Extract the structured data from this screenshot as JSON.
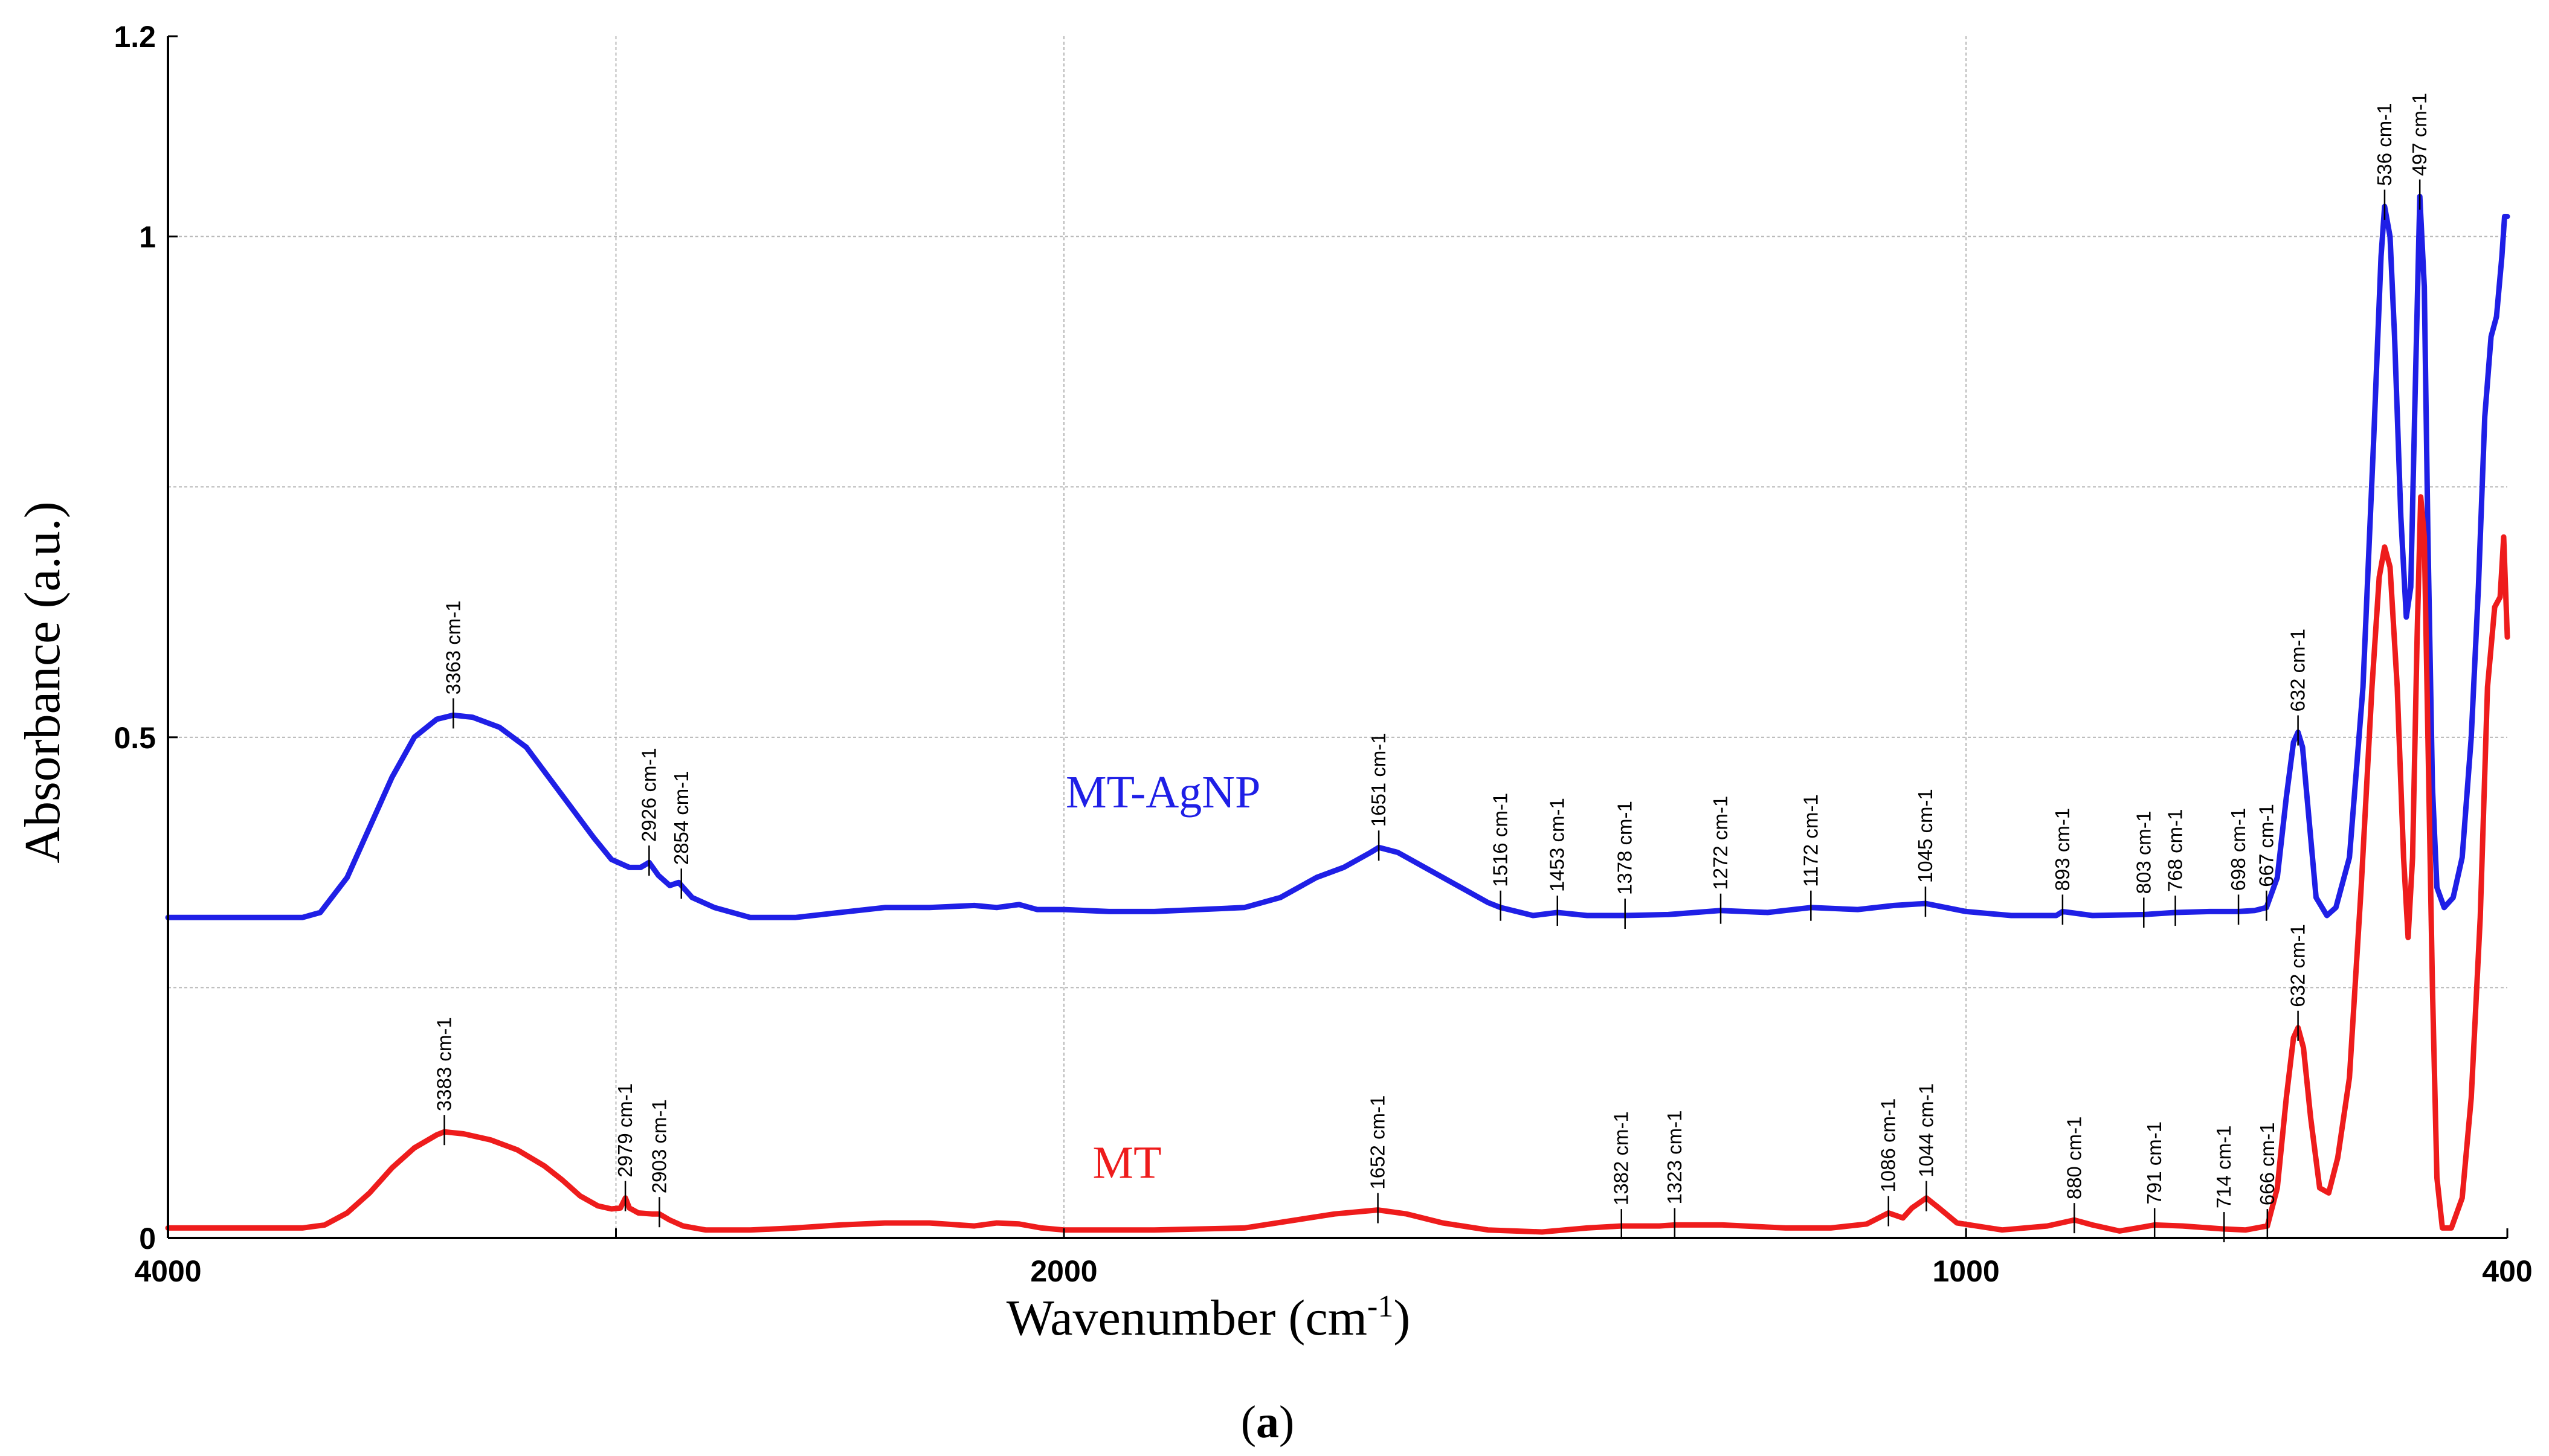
{
  "chart_data": {
    "type": "line",
    "title": "",
    "xlabel": "Wavenumber (cm",
    "xlabel_sup": "-1",
    "xlabel_close": ")",
    "ylabel": "Absorbance (a.u.)",
    "caption_open": "(",
    "caption_letter": "a",
    "caption_close": ")",
    "xlim": [
      4000,
      400
    ],
    "ylim": [
      0,
      1.2
    ],
    "x_tick_labels": [
      {
        "value": 4000,
        "label": "4000"
      },
      {
        "value": 2000,
        "label": "2000"
      },
      {
        "value": 1000,
        "label": "1000"
      },
      {
        "value": 400,
        "label": "400"
      }
    ],
    "y_tick_labels": [
      {
        "value": 0,
        "label": "0"
      },
      {
        "value": 0.5,
        "label": "0.5"
      },
      {
        "value": 1,
        "label": "1"
      },
      {
        "value": 1.2,
        "label": "1.2"
      }
    ],
    "grid_x": [
      3000,
      2000,
      1000
    ],
    "grid_y": [
      0.25,
      0.5,
      0.75,
      1.0
    ],
    "grid": true,
    "series": [
      {
        "name": "MT-AgNP",
        "color": "#1f1fe6",
        "label_at": {
          "x": 1890,
          "y": 0.43
        },
        "points": [
          [
            4000,
            0.32
          ],
          [
            3700,
            0.32
          ],
          [
            3660,
            0.325
          ],
          [
            3600,
            0.36
          ],
          [
            3550,
            0.41
          ],
          [
            3500,
            0.46
          ],
          [
            3450,
            0.5
          ],
          [
            3400,
            0.518
          ],
          [
            3363,
            0.522
          ],
          [
            3320,
            0.52
          ],
          [
            3260,
            0.51
          ],
          [
            3200,
            0.49
          ],
          [
            3150,
            0.46
          ],
          [
            3100,
            0.43
          ],
          [
            3050,
            0.4
          ],
          [
            3010,
            0.378
          ],
          [
            2970,
            0.37
          ],
          [
            2945,
            0.37
          ],
          [
            2926,
            0.375
          ],
          [
            2905,
            0.362
          ],
          [
            2880,
            0.352
          ],
          [
            2860,
            0.355
          ],
          [
            2854,
            0.352
          ],
          [
            2830,
            0.34
          ],
          [
            2780,
            0.33
          ],
          [
            2700,
            0.32
          ],
          [
            2600,
            0.32
          ],
          [
            2500,
            0.325
          ],
          [
            2400,
            0.33
          ],
          [
            2300,
            0.33
          ],
          [
            2200,
            0.332
          ],
          [
            2150,
            0.33
          ],
          [
            2100,
            0.333
          ],
          [
            2060,
            0.328
          ],
          [
            2000,
            0.328
          ],
          [
            1950,
            0.326
          ],
          [
            1900,
            0.326
          ],
          [
            1850,
            0.328
          ],
          [
            1800,
            0.33
          ],
          [
            1760,
            0.34
          ],
          [
            1720,
            0.36
          ],
          [
            1690,
            0.37
          ],
          [
            1660,
            0.385
          ],
          [
            1651,
            0.39
          ],
          [
            1630,
            0.385
          ],
          [
            1600,
            0.37
          ],
          [
            1560,
            0.35
          ],
          [
            1530,
            0.335
          ],
          [
            1516,
            0.33
          ],
          [
            1480,
            0.322
          ],
          [
            1453,
            0.325
          ],
          [
            1420,
            0.322
          ],
          [
            1378,
            0.322
          ],
          [
            1330,
            0.323
          ],
          [
            1272,
            0.327
          ],
          [
            1220,
            0.325
          ],
          [
            1172,
            0.33
          ],
          [
            1120,
            0.328
          ],
          [
            1080,
            0.332
          ],
          [
            1045,
            0.334
          ],
          [
            1000,
            0.326
          ],
          [
            950,
            0.322
          ],
          [
            900,
            0.322
          ],
          [
            893,
            0.326
          ],
          [
            860,
            0.322
          ],
          [
            803,
            0.323
          ],
          [
            768,
            0.325
          ],
          [
            730,
            0.326
          ],
          [
            698,
            0.326
          ],
          [
            680,
            0.327
          ],
          [
            667,
            0.33
          ],
          [
            655,
            0.36
          ],
          [
            645,
            0.44
          ],
          [
            637,
            0.495
          ],
          [
            632,
            0.505
          ],
          [
            627,
            0.49
          ],
          [
            620,
            0.42
          ],
          [
            612,
            0.34
          ],
          [
            600,
            0.322
          ],
          [
            590,
            0.33
          ],
          [
            575,
            0.38
          ],
          [
            560,
            0.55
          ],
          [
            548,
            0.8
          ],
          [
            540,
            0.98
          ],
          [
            536,
            1.03
          ],
          [
            530,
            1.0
          ],
          [
            525,
            0.9
          ],
          [
            518,
            0.72
          ],
          [
            512,
            0.62
          ],
          [
            507,
            0.65
          ],
          [
            502,
            0.85
          ],
          [
            497,
            1.04
          ],
          [
            492,
            0.95
          ],
          [
            488,
            0.7
          ],
          [
            483,
            0.45
          ],
          [
            478,
            0.35
          ],
          [
            470,
            0.33
          ],
          [
            460,
            0.34
          ],
          [
            450,
            0.38
          ],
          [
            440,
            0.5
          ],
          [
            432,
            0.65
          ],
          [
            425,
            0.82
          ],
          [
            418,
            0.9
          ],
          [
            412,
            0.92
          ],
          [
            406,
            0.98
          ],
          [
            403,
            1.02
          ],
          [
            400,
            1.02
          ]
        ]
      },
      {
        "name": "MT",
        "color": "#ee1c1c",
        "label_at": {
          "x": 1930,
          "y": 0.06
        },
        "points": [
          [
            4000,
            0.01
          ],
          [
            3700,
            0.01
          ],
          [
            3650,
            0.013
          ],
          [
            3600,
            0.025
          ],
          [
            3550,
            0.045
          ],
          [
            3500,
            0.07
          ],
          [
            3450,
            0.09
          ],
          [
            3400,
            0.103
          ],
          [
            3383,
            0.106
          ],
          [
            3340,
            0.104
          ],
          [
            3280,
            0.098
          ],
          [
            3220,
            0.088
          ],
          [
            3160,
            0.072
          ],
          [
            3120,
            0.058
          ],
          [
            3080,
            0.042
          ],
          [
            3040,
            0.032
          ],
          [
            3010,
            0.029
          ],
          [
            2990,
            0.03
          ],
          [
            2979,
            0.04
          ],
          [
            2970,
            0.03
          ],
          [
            2950,
            0.025
          ],
          [
            2920,
            0.024
          ],
          [
            2903,
            0.024
          ],
          [
            2880,
            0.018
          ],
          [
            2850,
            0.012
          ],
          [
            2800,
            0.008
          ],
          [
            2700,
            0.008
          ],
          [
            2600,
            0.01
          ],
          [
            2500,
            0.013
          ],
          [
            2400,
            0.015
          ],
          [
            2300,
            0.015
          ],
          [
            2200,
            0.012
          ],
          [
            2150,
            0.015
          ],
          [
            2100,
            0.014
          ],
          [
            2050,
            0.01
          ],
          [
            2000,
            0.008
          ],
          [
            1900,
            0.008
          ],
          [
            1800,
            0.01
          ],
          [
            1750,
            0.017
          ],
          [
            1700,
            0.024
          ],
          [
            1652,
            0.028
          ],
          [
            1620,
            0.024
          ],
          [
            1580,
            0.015
          ],
          [
            1530,
            0.008
          ],
          [
            1470,
            0.006
          ],
          [
            1420,
            0.01
          ],
          [
            1382,
            0.012
          ],
          [
            1340,
            0.012
          ],
          [
            1323,
            0.013
          ],
          [
            1270,
            0.013
          ],
          [
            1200,
            0.01
          ],
          [
            1150,
            0.01
          ],
          [
            1110,
            0.014
          ],
          [
            1086,
            0.025
          ],
          [
            1070,
            0.02
          ],
          [
            1060,
            0.03
          ],
          [
            1044,
            0.04
          ],
          [
            1030,
            0.03
          ],
          [
            1010,
            0.015
          ],
          [
            960,
            0.008
          ],
          [
            910,
            0.012
          ],
          [
            880,
            0.018
          ],
          [
            860,
            0.013
          ],
          [
            830,
            0.007
          ],
          [
            810,
            0.01
          ],
          [
            791,
            0.013
          ],
          [
            760,
            0.012
          ],
          [
            714,
            0.009
          ],
          [
            690,
            0.008
          ],
          [
            666,
            0.012
          ],
          [
            655,
            0.05
          ],
          [
            645,
            0.14
          ],
          [
            637,
            0.2
          ],
          [
            632,
            0.21
          ],
          [
            626,
            0.19
          ],
          [
            618,
            0.12
          ],
          [
            608,
            0.05
          ],
          [
            598,
            0.045
          ],
          [
            588,
            0.08
          ],
          [
            575,
            0.16
          ],
          [
            562,
            0.35
          ],
          [
            550,
            0.55
          ],
          [
            542,
            0.66
          ],
          [
            536,
            0.69
          ],
          [
            530,
            0.67
          ],
          [
            522,
            0.55
          ],
          [
            515,
            0.38
          ],
          [
            510,
            0.3
          ],
          [
            505,
            0.38
          ],
          [
            500,
            0.6
          ],
          [
            496,
            0.74
          ],
          [
            492,
            0.7
          ],
          [
            488,
            0.5
          ],
          [
            483,
            0.25
          ],
          [
            478,
            0.06
          ],
          [
            472,
            0.01
          ],
          [
            462,
            0.01
          ],
          [
            450,
            0.04
          ],
          [
            440,
            0.14
          ],
          [
            430,
            0.32
          ],
          [
            422,
            0.55
          ],
          [
            414,
            0.63
          ],
          [
            408,
            0.64
          ],
          [
            404,
            0.7
          ],
          [
            402,
            0.65
          ],
          [
            400,
            0.6
          ]
        ]
      }
    ],
    "annotations": [
      {
        "series": "MT-AgNP",
        "x": 3363,
        "y": 0.522,
        "label": "3363 cm-1"
      },
      {
        "series": "MT-AgNP",
        "x": 2926,
        "y": 0.375,
        "label": "2926 cm-1"
      },
      {
        "series": "MT-AgNP",
        "x": 2854,
        "y": 0.352,
        "label": "2854 cm-1"
      },
      {
        "series": "MT-AgNP",
        "x": 1651,
        "y": 0.39,
        "label": "1651 cm-1"
      },
      {
        "series": "MT-AgNP",
        "x": 1516,
        "y": 0.33,
        "label": "1516 cm-1"
      },
      {
        "series": "MT-AgNP",
        "x": 1453,
        "y": 0.325,
        "label": "1453 cm-1"
      },
      {
        "series": "MT-AgNP",
        "x": 1378,
        "y": 0.322,
        "label": "1378 cm-1"
      },
      {
        "series": "MT-AgNP",
        "x": 1272,
        "y": 0.327,
        "label": "1272 cm-1"
      },
      {
        "series": "MT-AgNP",
        "x": 1172,
        "y": 0.33,
        "label": "1172 cm-1"
      },
      {
        "series": "MT-AgNP",
        "x": 1045,
        "y": 0.334,
        "label": "1045 cm-1"
      },
      {
        "series": "MT-AgNP",
        "x": 893,
        "y": 0.326,
        "label": "893 cm-1"
      },
      {
        "series": "MT-AgNP",
        "x": 803,
        "y": 0.323,
        "label": "803 cm-1"
      },
      {
        "series": "MT-AgNP",
        "x": 768,
        "y": 0.325,
        "label": "768 cm-1"
      },
      {
        "series": "MT-AgNP",
        "x": 698,
        "y": 0.326,
        "label": "698 cm-1"
      },
      {
        "series": "MT-AgNP",
        "x": 667,
        "y": 0.33,
        "label": "667 cm-1"
      },
      {
        "series": "MT-AgNP",
        "x": 632,
        "y": 0.505,
        "label": "632 cm-1"
      },
      {
        "series": "MT-AgNP",
        "x": 536,
        "y": 1.03,
        "label": "536 cm-1"
      },
      {
        "series": "MT-AgNP",
        "x": 497,
        "y": 1.04,
        "label": "497 cm-1"
      },
      {
        "series": "MT",
        "x": 3383,
        "y": 0.106,
        "label": "3383 cm-1"
      },
      {
        "series": "MT",
        "x": 2979,
        "y": 0.04,
        "label": "2979 cm-1"
      },
      {
        "series": "MT",
        "x": 2903,
        "y": 0.024,
        "label": "2903 cm-1"
      },
      {
        "series": "MT",
        "x": 1652,
        "y": 0.028,
        "label": "1652 cm-1"
      },
      {
        "series": "MT",
        "x": 1382,
        "y": 0.012,
        "label": "1382 cm-1"
      },
      {
        "series": "MT",
        "x": 1323,
        "y": 0.013,
        "label": "1323 cm-1"
      },
      {
        "series": "MT",
        "x": 1086,
        "y": 0.025,
        "label": "1086 cm-1"
      },
      {
        "series": "MT",
        "x": 1044,
        "y": 0.04,
        "label": "1044 cm-1"
      },
      {
        "series": "MT",
        "x": 880,
        "y": 0.018,
        "label": "880 cm-1"
      },
      {
        "series": "MT",
        "x": 791,
        "y": 0.013,
        "label": "791 cm-1"
      },
      {
        "series": "MT",
        "x": 714,
        "y": 0.009,
        "label": "714 cm-1"
      },
      {
        "series": "MT",
        "x": 666,
        "y": 0.012,
        "label": "666 cm-1"
      },
      {
        "series": "MT",
        "x": 632,
        "y": 0.21,
        "label": "632 cm-1"
      }
    ]
  }
}
